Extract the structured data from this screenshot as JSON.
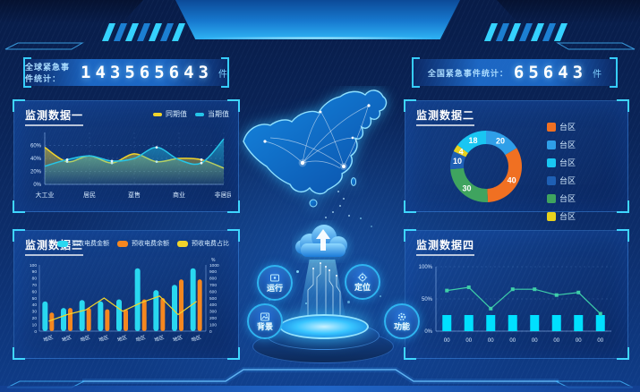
{
  "counters": {
    "left": {
      "label": "全球紧急事件统计：",
      "value": "143565643",
      "unit": "件"
    },
    "right": {
      "label": "全国紧急事件统计：",
      "value": "65643",
      "unit": "件"
    }
  },
  "center": {
    "buttons": [
      {
        "label": "运行",
        "icon": "monitor-icon"
      },
      {
        "label": "定位",
        "icon": "target-icon"
      },
      {
        "label": "背景",
        "icon": "image-icon"
      },
      {
        "label": "功能",
        "icon": "gear-icon"
      }
    ]
  },
  "colors": {
    "accent": "#35d2ff",
    "panel_border": "#3f8fe0",
    "background": "#0a2458"
  },
  "chart_data": [
    {
      "id": "monitor1",
      "type": "area",
      "title": "监测数据一",
      "categories": [
        "大工业",
        "居民",
        "趸售",
        "商业",
        "非居民"
      ],
      "ylim": [
        0,
        80
      ],
      "y_ticks": [
        {
          "v": 0,
          "label": "0%"
        },
        {
          "v": 20,
          "label": "20%"
        },
        {
          "v": 40,
          "label": "40%"
        },
        {
          "v": 60,
          "label": "60%"
        }
      ],
      "grid": true,
      "legend_position": "top-right",
      "series": [
        {
          "name": "同期值",
          "color": "#f2d42b",
          "values": [
            57,
            35,
            44,
            33,
            47,
            35,
            40,
            38,
            25
          ]
        },
        {
          "name": "当期值",
          "color": "#25c5e8",
          "values": [
            28,
            38,
            44,
            36,
            40,
            57,
            38,
            33,
            70
          ]
        }
      ]
    },
    {
      "id": "monitor2",
      "type": "donut",
      "title": "监测数据二",
      "slices": [
        {
          "value": 20,
          "color": "#2f9fe8"
        },
        {
          "value": 40,
          "color": "#f07022"
        },
        {
          "value": 30,
          "color": "#3fa45f"
        },
        {
          "value": 10,
          "color": "#1e5fb4"
        },
        {
          "value": 4,
          "color": "#e8d21d"
        },
        {
          "value": 18,
          "color": "#19c6f2"
        }
      ],
      "legend_position": "right",
      "legend": [
        {
          "label": "台区",
          "color": "#f07022"
        },
        {
          "label": "台区",
          "color": "#2f9fe8"
        },
        {
          "label": "台区",
          "color": "#19c6f2"
        },
        {
          "label": "台区",
          "color": "#1e5fb4"
        },
        {
          "label": "台区",
          "color": "#3fa45f"
        },
        {
          "label": "台区",
          "color": "#e8d21d"
        }
      ]
    },
    {
      "id": "monitor3",
      "type": "bar-line",
      "title": "监测数据三",
      "categories": [
        "地区",
        "地区",
        "地区",
        "地区",
        "地区",
        "地区",
        "地区",
        "地区",
        "地区"
      ],
      "left_axis": {
        "max": 100,
        "ticks": [
          0,
          10,
          20,
          30,
          40,
          50,
          60,
          70,
          80,
          90,
          100
        ]
      },
      "right_axis": {
        "max": 1000,
        "ticks": [
          0,
          100,
          200,
          300,
          400,
          500,
          600,
          700,
          800,
          900,
          1000
        ],
        "unit": "%"
      },
      "bars": [
        {
          "name": "预收电费金额",
          "color": "#29d8f0",
          "values": [
            45,
            35,
            47,
            45,
            48,
            95,
            62,
            70,
            95
          ]
        },
        {
          "name": "预收电费余额",
          "color": "#f5871f",
          "values": [
            28,
            35,
            35,
            33,
            33,
            48,
            50,
            78,
            78
          ]
        }
      ],
      "line": {
        "name": "预收电费占比",
        "color": "#f2d42b",
        "values": [
          150,
          250,
          320,
          500,
          300,
          430,
          530,
          250,
          450
        ]
      }
    },
    {
      "id": "monitor4",
      "type": "bar-line",
      "title": "监测数据四",
      "categories": [
        "00",
        "00",
        "00",
        "00",
        "00",
        "00",
        "00",
        "00"
      ],
      "ylim": [
        0,
        100
      ],
      "y_ticks": [
        {
          "v": 0,
          "label": "0%"
        },
        {
          "v": 50,
          "label": "50%"
        },
        {
          "v": 100,
          "label": "100%"
        }
      ],
      "bars": [
        {
          "name": "",
          "color": "#00e0ff",
          "values": [
            25,
            25,
            25,
            25,
            25,
            25,
            25,
            25
          ]
        }
      ],
      "line": {
        "name": "",
        "color": "#3ecfa9",
        "values": [
          63,
          68,
          35,
          65,
          65,
          56,
          60,
          27
        ]
      }
    }
  ]
}
